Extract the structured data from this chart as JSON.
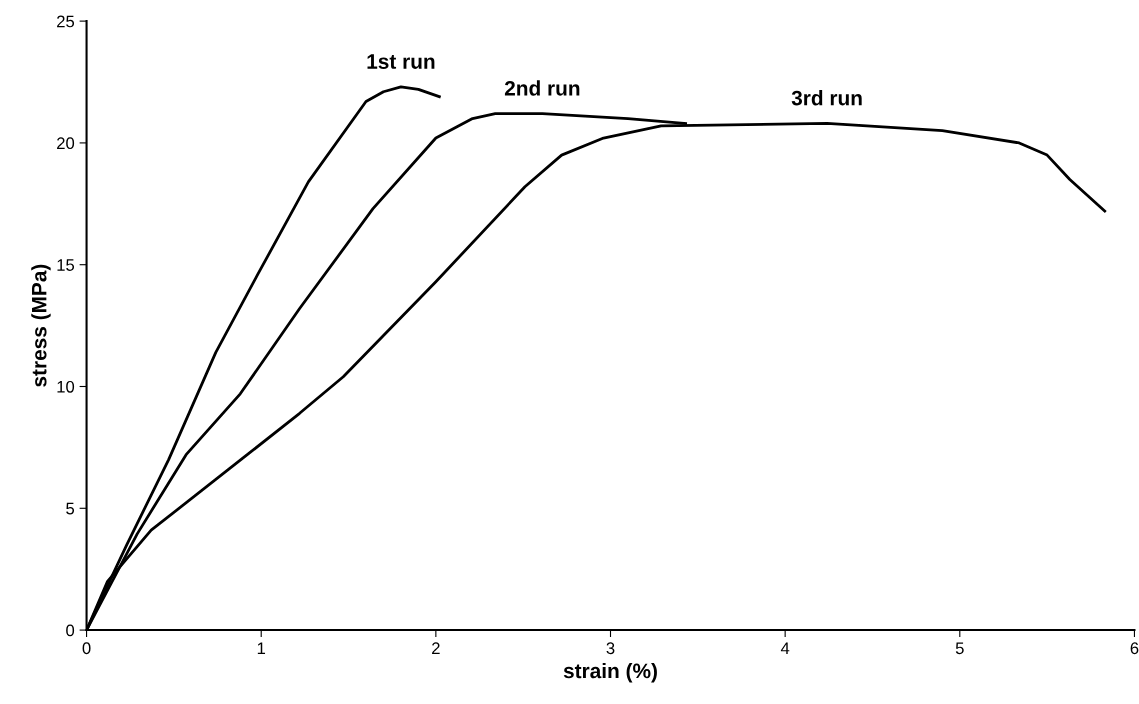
{
  "chart_data": {
    "type": "line",
    "xlabel": "strain (%)",
    "ylabel": "stress (MPa)",
    "xlim": [
      0,
      6
    ],
    "xticks": [
      0,
      1,
      2,
      3,
      4,
      5,
      6
    ],
    "ylim": [
      0,
      25
    ],
    "yticks": [
      0,
      5,
      10,
      15,
      20,
      25
    ],
    "grid": false,
    "legend": false,
    "marker": "none",
    "line_style": "solid",
    "series": [
      {
        "name": "1st run",
        "color": "#000000",
        "x": [
          0,
          0.23,
          0.47,
          0.74,
          0.98,
          1.27,
          1.6,
          1.7,
          1.8,
          1.9,
          2.02
        ],
        "values": [
          0,
          3.5,
          7.0,
          11.4,
          14.6,
          18.4,
          21.7,
          22.1,
          22.3,
          22.2,
          21.9
        ]
      },
      {
        "name": "2nd run",
        "color": "#000000",
        "x": [
          0,
          0.29,
          0.57,
          0.88,
          1.22,
          1.64,
          2.0,
          2.21,
          2.34,
          2.61,
          3.1,
          3.43
        ],
        "values": [
          0,
          3.95,
          7.2,
          9.7,
          13.2,
          17.3,
          20.2,
          21.0,
          21.2,
          21.2,
          21.0,
          20.8
        ]
      },
      {
        "name": "3rd run",
        "color": "#000000",
        "x": [
          0,
          0.12,
          0.37,
          0.92,
          1.22,
          1.47,
          2.0,
          2.51,
          2.72,
          2.96,
          3.29,
          4.24,
          4.9,
          5.34,
          5.5,
          5.63,
          5.83
        ],
        "values": [
          0,
          2.0,
          4.1,
          7.2,
          8.9,
          10.4,
          14.3,
          18.2,
          19.5,
          20.2,
          20.7,
          20.8,
          20.5,
          20.0,
          19.5,
          18.5,
          17.2
        ]
      }
    ]
  }
}
